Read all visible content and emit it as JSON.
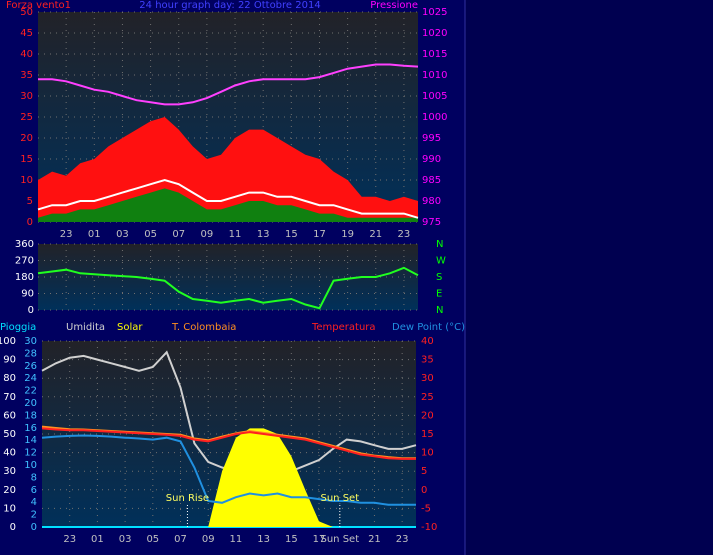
{
  "chart_data": [
    {
      "type": "line",
      "title": "24 hour graph day: 22 Ottobre 2014",
      "y_label": "Forza vento1",
      "y2_label": "Pressione",
      "xlim": [
        0,
        27
      ],
      "xticks": [
        {
          "value": 2,
          "label": "23"
        },
        {
          "value": 4,
          "label": "01"
        },
        {
          "value": 6,
          "label": "03"
        },
        {
          "value": 8,
          "label": "05"
        },
        {
          "value": 10,
          "label": "07"
        },
        {
          "value": 12,
          "label": "09"
        },
        {
          "value": 14,
          "label": "11"
        },
        {
          "value": 16,
          "label": "13"
        },
        {
          "value": 18,
          "label": "15"
        },
        {
          "value": 20,
          "label": "17"
        },
        {
          "value": 22,
          "label": "19"
        },
        {
          "value": 24,
          "label": "21"
        },
        {
          "value": 26,
          "label": "23"
        }
      ],
      "x": [
        0,
        1,
        2,
        3,
        4,
        5,
        6,
        7,
        8,
        9,
        10,
        11,
        12,
        13,
        14,
        15,
        16,
        17,
        18,
        19,
        20,
        21,
        22,
        23,
        24,
        25,
        26,
        27
      ],
      "ylim": [
        0,
        50
      ],
      "yticks": [
        0,
        5,
        10,
        15,
        20,
        25,
        30,
        35,
        40,
        45,
        50
      ],
      "y_color": "#ff2020",
      "y2lim": [
        975,
        1025
      ],
      "y2ticks": [
        975,
        980,
        985,
        990,
        995,
        1000,
        1005,
        1010,
        1015,
        1020,
        1025
      ],
      "y2_color": "#ff00ff",
      "grid": true,
      "series": [
        {
          "color": "#ff1010",
          "style": "area",
          "axis": "y",
          "values": [
            10,
            12,
            11,
            14,
            15,
            18,
            20,
            22,
            24,
            25,
            22,
            18,
            15,
            16,
            20,
            22,
            22,
            20,
            18,
            16,
            15,
            12,
            10,
            6,
            6,
            5,
            6,
            5
          ]
        },
        {
          "color": "#108010",
          "style": "area",
          "axis": "y",
          "values": [
            1,
            2,
            2,
            3,
            3,
            4,
            5,
            6,
            7,
            8,
            7,
            5,
            3,
            3,
            4,
            5,
            5,
            4,
            4,
            3,
            2,
            2,
            1,
            1,
            1,
            1,
            1,
            1
          ]
        },
        {
          "color": "#ffffff",
          "style": "line",
          "axis": "y",
          "values": [
            3,
            4,
            4,
            5,
            5,
            6,
            7,
            8,
            9,
            10,
            9,
            7,
            5,
            5,
            6,
            7,
            7,
            6,
            6,
            5,
            4,
            4,
            3,
            2,
            2,
            2,
            2,
            1
          ]
        },
        {
          "color": "#ff40ff",
          "style": "line",
          "axis": "y2",
          "values": [
            1009,
            1009,
            1008.5,
            1007.5,
            1006.5,
            1006,
            1005,
            1004,
            1003.5,
            1003,
            1003,
            1003.5,
            1004.5,
            1006,
            1007.5,
            1008.5,
            1009,
            1009,
            1009,
            1009,
            1009.5,
            1010.5,
            1011.5,
            1012,
            1012.5,
            1012.5,
            1012.2,
            1012
          ]
        }
      ]
    },
    {
      "type": "line",
      "xlim": [
        0,
        27
      ],
      "xticks": [
        {
          "value": 2,
          "label": "23"
        },
        {
          "value": 4,
          "label": "01"
        },
        {
          "value": 6,
          "label": "03"
        },
        {
          "value": 8,
          "label": "05"
        },
        {
          "value": 10,
          "label": "07"
        },
        {
          "value": 12,
          "label": "09"
        },
        {
          "value": 14,
          "label": "11"
        },
        {
          "value": 16,
          "label": "13"
        },
        {
          "value": 18,
          "label": "15"
        },
        {
          "value": 20,
          "label": "17"
        },
        {
          "value": 22,
          "label": "19"
        },
        {
          "value": 24,
          "label": "21"
        },
        {
          "value": 26,
          "label": "23"
        }
      ],
      "x": [
        0,
        1,
        2,
        3,
        4,
        5,
        6,
        7,
        8,
        9,
        10,
        11,
        12,
        13,
        14,
        15,
        16,
        17,
        18,
        19,
        20,
        21,
        22,
        23,
        24,
        25,
        26,
        27
      ],
      "ylim": [
        0,
        360
      ],
      "yticks": [
        0,
        90,
        180,
        270,
        360
      ],
      "y_color": "#ffffff",
      "y2lim": [
        0,
        360
      ],
      "y2ticks": [
        {
          "value": 360,
          "label": "N"
        },
        {
          "value": 270,
          "label": "W"
        },
        {
          "value": 180,
          "label": "S"
        },
        {
          "value": 90,
          "label": "E"
        },
        {
          "value": 0,
          "label": "N"
        }
      ],
      "y2_color": "#00ff00",
      "grid": true,
      "series": [
        {
          "color": "#20ff20",
          "style": "line",
          "axis": "y",
          "values": [
            200,
            210,
            220,
            200,
            195,
            190,
            185,
            180,
            170,
            160,
            100,
            60,
            50,
            40,
            50,
            60,
            40,
            50,
            60,
            30,
            10,
            160,
            170,
            180,
            180,
            200,
            230,
            190
          ]
        }
      ]
    },
    {
      "type": "line",
      "xlim": [
        0,
        27
      ],
      "xticks": [
        {
          "value": 2,
          "label": "23"
        },
        {
          "value": 4,
          "label": "01"
        },
        {
          "value": 6,
          "label": "03"
        },
        {
          "value": 8,
          "label": "05"
        },
        {
          "value": 10,
          "label": "07"
        },
        {
          "value": 12,
          "label": "09"
        },
        {
          "value": 14,
          "label": "11"
        },
        {
          "value": 16,
          "label": "13"
        },
        {
          "value": 18,
          "label": "15"
        },
        {
          "value": 20,
          "label": "17"
        },
        {
          "value": 21.5,
          "label": "Sun Set"
        },
        {
          "value": 24,
          "label": "21"
        },
        {
          "value": 26,
          "label": "23"
        }
      ],
      "x": [
        0,
        1,
        2,
        3,
        4,
        5,
        6,
        7,
        8,
        9,
        10,
        11,
        12,
        13,
        14,
        15,
        16,
        17,
        18,
        19,
        20,
        21,
        22,
        23,
        24,
        25,
        26,
        27
      ],
      "ylim": [
        0,
        100
      ],
      "yticks": [
        0,
        10,
        20,
        30,
        40,
        50,
        60,
        70,
        80,
        90,
        100
      ],
      "y_color": "#ffffff",
      "y2lim": [
        0,
        30
      ],
      "y2ticks": [
        0,
        2,
        4,
        6,
        8,
        10,
        12,
        14,
        16,
        18,
        20,
        22,
        24,
        26,
        28,
        30
      ],
      "y2_color": "#40c0ff",
      "y3lim": [
        -10,
        40
      ],
      "y3ticks": [
        -10,
        -5,
        0,
        5,
        10,
        15,
        20,
        25,
        30,
        35,
        40
      ],
      "y3_color": "#ff2020",
      "grid": true,
      "annotations": [
        {
          "text": "Sun Rise",
          "x": 10.5
        },
        {
          "text": "Sun Set",
          "x": 21.5
        }
      ],
      "series": [
        {
          "name": "Pioggia",
          "color": "#00e0ff",
          "style": "line",
          "axis": "y2",
          "values": [
            0,
            0,
            0,
            0,
            0,
            0,
            0,
            0,
            0,
            0,
            0,
            0,
            0,
            0,
            0,
            0,
            0,
            0,
            0,
            0,
            0,
            0,
            0,
            0,
            0,
            0,
            0,
            0
          ]
        },
        {
          "name": "Umidita",
          "color": "#d0d0d0",
          "style": "line",
          "axis": "y",
          "values": [
            84,
            88,
            91,
            92,
            90,
            88,
            86,
            84,
            86,
            94,
            75,
            45,
            35,
            32,
            30,
            32,
            33,
            34,
            30,
            33,
            36,
            42,
            47,
            46,
            44,
            42,
            42,
            44
          ]
        },
        {
          "name": "Solar",
          "color": "#ffff00",
          "style": "area",
          "axis": "y",
          "values": [
            0,
            0,
            0,
            0,
            0,
            0,
            0,
            0,
            0,
            0,
            0,
            0,
            0,
            30,
            48,
            53,
            53,
            50,
            38,
            20,
            3,
            0,
            0,
            0,
            0,
            0,
            0,
            0
          ]
        },
        {
          "name": "T. Colombaia",
          "color": "#ff9020",
          "style": "line",
          "axis": "y3",
          "values": [
            17,
            16.6,
            16.3,
            16.2,
            16,
            15.8,
            15.6,
            15.4,
            15.2,
            15,
            14.8,
            13.8,
            13.3,
            14.3,
            15.2,
            15.8,
            15.3,
            14.8,
            14.3,
            13.8,
            12.8,
            11.8,
            10.8,
            9.8,
            9.2,
            8.8,
            8.5,
            8.5
          ]
        },
        {
          "name": "Temperatura",
          "color": "#ff2020",
          "style": "line",
          "axis": "y3",
          "values": [
            16.5,
            16.2,
            16,
            16,
            15.8,
            15.6,
            15.4,
            15.2,
            15,
            14.8,
            14.5,
            13.5,
            13,
            14,
            15,
            15.5,
            15,
            14.5,
            14,
            13.5,
            12.5,
            11.5,
            10.5,
            9.5,
            9,
            8.5,
            8.3,
            8.3
          ]
        },
        {
          "name": "Dew Point (°C)",
          "color": "#2090e0",
          "style": "line",
          "axis": "y3",
          "values": [
            14,
            14.3,
            14.5,
            14.6,
            14.5,
            14.3,
            14,
            13.8,
            13.5,
            14,
            13,
            6,
            -3,
            -3.5,
            -2,
            -1,
            -1.5,
            -1,
            -2,
            -2,
            -2.5,
            -3,
            -3,
            -3.5,
            -3.5,
            -4,
            -4,
            -4
          ]
        }
      ]
    }
  ]
}
